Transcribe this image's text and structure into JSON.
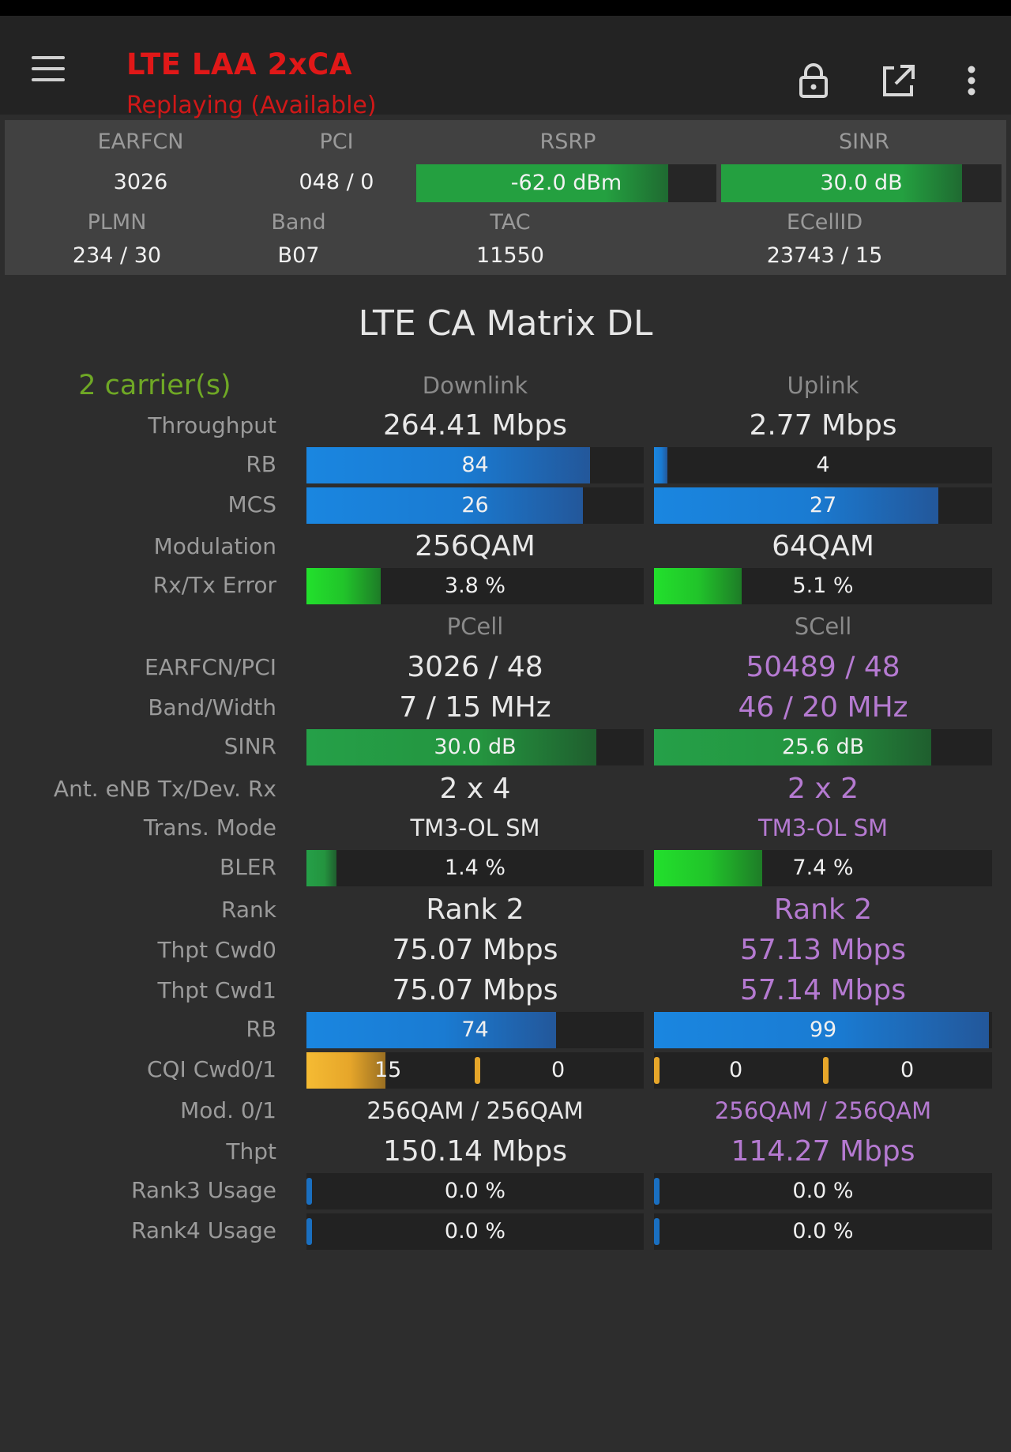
{
  "app": {
    "title": "LTE LAA 2xCA",
    "subtitle": "Replaying (Available)",
    "icons": [
      "menu-icon",
      "lock-icon",
      "open-external-icon",
      "more-vert-icon"
    ],
    "colors": {
      "title": "#e01818",
      "scell_text": "#b57ad1",
      "carriers_text": "#6fa825"
    }
  },
  "info": {
    "earfcn_label": "EARFCN",
    "earfcn": "3026",
    "pci_label": "PCI",
    "pci": "048 / 0",
    "rsrp_label": "RSRP",
    "rsrp": "-62.0 dBm",
    "rsrp_level": 0.84,
    "sinr_label": "SINR",
    "sinr": "30.0 dB",
    "sinr_level": 0.86,
    "plmn_label": "PLMN",
    "plmn": "234 / 30",
    "band_label": "Band",
    "band": "B07",
    "tac_label": "TAC",
    "tac": "11550",
    "ecellid_label": "ECellID",
    "ecellid": "23743 / 15"
  },
  "matrix": {
    "title": "LTE CA Matrix DL",
    "carriers": "2 carrier(s)",
    "downlink_header": "Downlink",
    "uplink_header": "Uplink",
    "throughput_label": "Throughput",
    "dl_throughput": "264.41 Mbps",
    "ul_throughput": "2.77 Mbps",
    "rb_label": "RB",
    "dl_rb": "84",
    "dl_rb_level": 0.84,
    "ul_rb": "4",
    "ul_rb_level": 0.04,
    "mcs_label": "MCS",
    "dl_mcs": "26",
    "dl_mcs_level": 0.82,
    "ul_mcs": "27",
    "ul_mcs_level": 0.84,
    "modulation_label": "Modulation",
    "dl_modulation": "256QAM",
    "ul_modulation": "64QAM",
    "error_label": "Rx/Tx Error",
    "dl_error": "3.8 %",
    "dl_error_level": 0.22,
    "ul_error": "5.1 %",
    "ul_error_level": 0.26,
    "pcell_header": "PCell",
    "scell_header": "SCell",
    "earfcn_pci_label": "EARFCN/PCI",
    "p_earfcn_pci": "3026 / 48",
    "s_earfcn_pci": "50489 / 48",
    "band_width_label": "Band/Width",
    "p_band_width": "7 / 15 MHz",
    "s_band_width": "46 / 20 MHz",
    "sinr_label": "SINR",
    "p_sinr": "30.0 dB",
    "p_sinr_level": 0.86,
    "s_sinr": "25.6 dB",
    "s_sinr_level": 0.82,
    "ant_label": "Ant. eNB Tx/Dev. Rx",
    "p_ant": "2 x 4",
    "s_ant": "2 x 2",
    "tm_label": "Trans. Mode",
    "p_tm": "TM3-OL SM",
    "s_tm": "TM3-OL SM",
    "bler_label": "BLER",
    "p_bler": "1.4 %",
    "p_bler_level": 0.09,
    "s_bler": "7.4 %",
    "s_bler_level": 0.32,
    "rank_label": "Rank",
    "p_rank": "Rank 2",
    "s_rank": "Rank 2",
    "cwd0_label": "Thpt Cwd0",
    "p_cwd0": "75.07 Mbps",
    "s_cwd0": "57.13 Mbps",
    "cwd1_label": "Thpt Cwd1",
    "p_cwd1": "75.07 Mbps",
    "s_cwd1": "57.14 Mbps",
    "rb2_label": "RB",
    "p_rb": "74",
    "p_rb_level": 0.74,
    "s_rb": "99",
    "s_rb_level": 0.99,
    "cqi_label": "CQI Cwd0/1",
    "p_cqi0": "15",
    "p_cqi1": "0",
    "s_cqi0": "0",
    "s_cqi1": "0",
    "mod01_label": "Mod. 0/1",
    "p_mod01": "256QAM / 256QAM",
    "s_mod01": "256QAM / 256QAM",
    "thpt_label": "Thpt",
    "p_thpt": "150.14 Mbps",
    "s_thpt": "114.27 Mbps",
    "rank3_label": "Rank3 Usage",
    "p_rank3": "0.0 %",
    "s_rank3": "0.0 %",
    "rank4_label": "Rank4 Usage",
    "p_rank4": "0.0 %",
    "s_rank4": "0.0 %"
  }
}
